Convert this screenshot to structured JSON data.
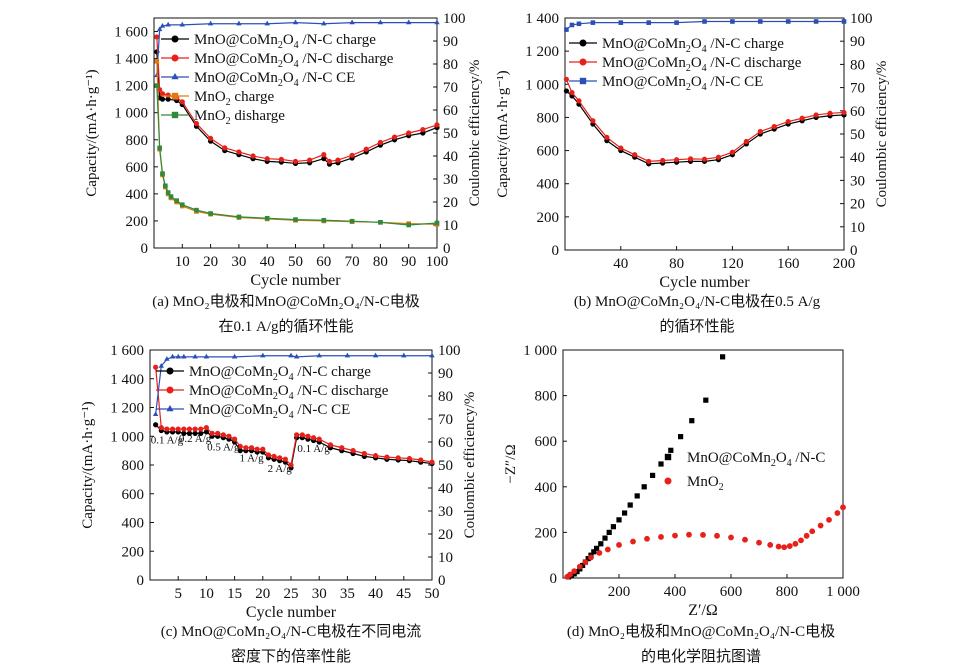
{
  "chart_data": [
    {
      "id": "a",
      "type": "line",
      "caption_lines": [
        "(a) MnO₂电极和MnO@CoMn₂O₄/N-C电极",
        "在0.1 A/g的循环性能"
      ],
      "xlabel": "Cycle number",
      "ylabel": "Capacity/(mA·h·g⁻¹)",
      "y2label": "Coulombic efficiency/%",
      "xlim": [
        0,
        100
      ],
      "ylim": [
        0,
        1700
      ],
      "y2lim": [
        0,
        100
      ],
      "xticks": [
        10,
        20,
        30,
        40,
        50,
        60,
        70,
        80,
        90,
        100
      ],
      "yticks": [
        0,
        200,
        400,
        600,
        800,
        1000,
        1200,
        1400,
        1600
      ],
      "ytick_labels": [
        "0",
        "200",
        "400",
        "600",
        "800",
        "1 000",
        "1 200",
        "1 400",
        "1 600"
      ],
      "y2ticks": [
        0,
        10,
        20,
        30,
        40,
        50,
        60,
        70,
        80,
        90,
        100
      ],
      "legend": "top-left",
      "series": [
        {
          "name": "MnO@CoMn2O4 /N-C charge",
          "label_parts": [
            "MnO@CoMn",
            "2",
            "O",
            "4",
            " /N-C charge"
          ],
          "color": "#000000",
          "marker": "circle",
          "axis": "left",
          "x": [
            1,
            2,
            3,
            5,
            8,
            10,
            15,
            20,
            25,
            30,
            35,
            40,
            45,
            50,
            55,
            60,
            62,
            65,
            70,
            75,
            80,
            85,
            90,
            95,
            100
          ],
          "y": [
            1450,
            1110,
            1100,
            1100,
            1090,
            1060,
            900,
            790,
            720,
            690,
            660,
            640,
            635,
            625,
            630,
            660,
            620,
            630,
            665,
            710,
            760,
            800,
            830,
            850,
            890
          ]
        },
        {
          "name": "MnO@CoMn2O4 /N-C discharge",
          "label_parts": [
            "MnO@CoMn",
            "2",
            "O",
            "4",
            " /N-C discharge"
          ],
          "color": "#e8201a",
          "marker": "circle",
          "axis": "left",
          "x": [
            1,
            2,
            3,
            5,
            8,
            10,
            15,
            20,
            25,
            30,
            35,
            40,
            45,
            50,
            55,
            60,
            62,
            65,
            70,
            75,
            80,
            85,
            90,
            95,
            100
          ],
          "y": [
            1560,
            1170,
            1140,
            1130,
            1110,
            1080,
            920,
            810,
            740,
            710,
            680,
            660,
            655,
            640,
            650,
            690,
            640,
            650,
            685,
            730,
            780,
            820,
            850,
            875,
            910
          ]
        },
        {
          "name": "MnO@CoMn2O4 /N-C CE",
          "label_parts": [
            "MnO@CoMn",
            "2",
            "O",
            "4",
            " /N-C CE"
          ],
          "color": "#2a50b8",
          "marker": "triangle",
          "axis": "right",
          "x": [
            1,
            2,
            3,
            5,
            10,
            20,
            30,
            40,
            50,
            60,
            70,
            80,
            90,
            100
          ],
          "y": [
            75,
            95,
            96.5,
            97,
            97,
            97.5,
            97.5,
            97.5,
            98,
            97.5,
            98,
            98,
            98,
            98
          ]
        },
        {
          "name": "MnO2 charge",
          "label_parts": [
            "MnO",
            "2",
            " charge"
          ],
          "color": "#e07a10",
          "marker": "square",
          "axis": "left",
          "x": [
            1,
            2,
            3,
            4,
            5,
            6,
            8,
            10,
            15,
            20,
            30,
            40,
            50,
            60,
            70,
            80,
            90,
            100
          ],
          "y": [
            1380,
            730,
            540,
            450,
            400,
            370,
            340,
            310,
            270,
            250,
            225,
            215,
            205,
            200,
            195,
            190,
            180,
            175
          ]
        },
        {
          "name": "MnO2 disharge",
          "label_parts": [
            "MnO",
            "2",
            " disharge"
          ],
          "color": "#2f8a3a",
          "marker": "square",
          "axis": "left",
          "x": [
            1,
            2,
            3,
            4,
            5,
            6,
            8,
            10,
            15,
            20,
            30,
            40,
            50,
            60,
            70,
            80,
            90,
            100
          ],
          "y": [
            1200,
            740,
            550,
            460,
            410,
            380,
            350,
            320,
            280,
            255,
            230,
            220,
            210,
            205,
            198,
            190,
            170,
            185
          ]
        }
      ]
    },
    {
      "id": "b",
      "type": "line",
      "caption_lines": [
        "(b) MnO@CoMn₂O₄/N-C电极在0.5 A/g",
        "的循环性能"
      ],
      "xlabel": "Cycle number",
      "ylabel": "Capacity/(mA·h·g⁻¹)",
      "y2label": "Coulombic efficiency/%",
      "xlim": [
        0,
        200
      ],
      "ylim": [
        0,
        1400
      ],
      "y2lim": [
        0,
        100
      ],
      "xticks": [
        40,
        80,
        120,
        160,
        200
      ],
      "yticks": [
        0,
        200,
        400,
        600,
        800,
        1000,
        1200,
        1400
      ],
      "ytick_labels": [
        "0",
        "200",
        "400",
        "600",
        "800",
        "1 000",
        "1 200",
        "1 400"
      ],
      "y2ticks": [
        0,
        10,
        20,
        30,
        40,
        50,
        60,
        70,
        80,
        90,
        100
      ],
      "legend": "top-left",
      "series": [
        {
          "name": "MnO@CoMn2O4 /N-C charge",
          "label_parts": [
            "MnO@CoMn",
            "2",
            "O",
            "4",
            " /N-C charge"
          ],
          "color": "#000000",
          "marker": "circle",
          "axis": "left",
          "x": [
            1,
            5,
            10,
            20,
            30,
            40,
            50,
            60,
            70,
            80,
            90,
            100,
            110,
            120,
            130,
            140,
            150,
            160,
            170,
            180,
            190,
            200
          ],
          "y": [
            960,
            930,
            880,
            760,
            660,
            600,
            560,
            520,
            525,
            530,
            535,
            535,
            545,
            575,
            640,
            700,
            730,
            760,
            780,
            800,
            810,
            815
          ]
        },
        {
          "name": "MnO@CoMn2O4 /N-C discharge",
          "label_parts": [
            "MnO@CoMn",
            "2",
            "O",
            "4",
            " /N-C discharge"
          ],
          "color": "#e8201a",
          "marker": "circle",
          "axis": "left",
          "x": [
            1,
            5,
            10,
            20,
            30,
            40,
            50,
            60,
            70,
            80,
            90,
            100,
            110,
            120,
            130,
            140,
            150,
            160,
            170,
            180,
            190,
            200
          ],
          "y": [
            1030,
            950,
            900,
            780,
            680,
            615,
            575,
            535,
            540,
            545,
            550,
            548,
            560,
            590,
            655,
            715,
            745,
            775,
            795,
            815,
            825,
            830
          ]
        },
        {
          "name": "MnO@CoMn2O4 /N-C CE",
          "label_parts": [
            "MnO@CoMn",
            "2",
            "O",
            "4",
            " /N-C CE"
          ],
          "color": "#2a50b8",
          "marker": "square",
          "axis": "right",
          "x": [
            1,
            5,
            10,
            20,
            40,
            60,
            80,
            100,
            120,
            140,
            160,
            180,
            200
          ],
          "y": [
            95,
            97,
            97.5,
            98,
            98,
            98,
            98,
            98.5,
            98.5,
            98.5,
            98.5,
            98.5,
            98.5
          ]
        }
      ]
    },
    {
      "id": "c",
      "type": "line",
      "caption_lines": [
        "(c) MnO@CoMn₂O₄/N-C电极在不同电流",
        "密度下的倍率性能"
      ],
      "xlabel": "Cycle number",
      "ylabel": "Capacity/(mA·h·g⁻¹)",
      "y2label": "Coulombic efficiency/%",
      "xlim": [
        0,
        50
      ],
      "ylim": [
        0,
        1600
      ],
      "y2lim": [
        0,
        100
      ],
      "xticks": [
        5,
        10,
        15,
        20,
        25,
        30,
        35,
        40,
        45,
        50
      ],
      "yticks": [
        0,
        200,
        400,
        600,
        800,
        1000,
        1200,
        1400,
        1600
      ],
      "ytick_labels": [
        "0",
        "200",
        "400",
        "600",
        "800",
        "1 000",
        "1 200",
        "1 400",
        "1 600"
      ],
      "y2ticks": [
        0,
        10,
        20,
        30,
        40,
        50,
        60,
        70,
        80,
        90,
        100
      ],
      "legend": "top-left",
      "annotations": [
        {
          "text": "0.1 A/g",
          "x": 3,
          "y": 950
        },
        {
          "text": "0.2 A/g",
          "x": 8,
          "y": 960
        },
        {
          "text": "0.5 A/g",
          "x": 13,
          "y": 900
        },
        {
          "text": "1 A/g",
          "x": 18,
          "y": 825
        },
        {
          "text": "2 A/g",
          "x": 23,
          "y": 750
        },
        {
          "text": "0.1 A/g",
          "x": 29,
          "y": 890
        }
      ],
      "series": [
        {
          "name": "MnO@CoMn2O4 /N-C charge",
          "label_parts": [
            "MnO@CoMn",
            "2",
            "O",
            "4",
            " /N-C charge"
          ],
          "color": "#000000",
          "marker": "circle",
          "axis": "left",
          "x": [
            1,
            2,
            3,
            4,
            5,
            6,
            7,
            8,
            9,
            10,
            11,
            12,
            13,
            14,
            15,
            16,
            17,
            18,
            19,
            20,
            21,
            22,
            23,
            24,
            25,
            26,
            27,
            28,
            29,
            30,
            32,
            34,
            36,
            38,
            40,
            42,
            44,
            46,
            48,
            50
          ],
          "y": [
            1080,
            1040,
            1030,
            1030,
            1030,
            1020,
            1020,
            1020,
            1020,
            1030,
            1000,
            1000,
            990,
            980,
            960,
            900,
            900,
            900,
            890,
            890,
            850,
            840,
            830,
            820,
            780,
            990,
            990,
            980,
            970,
            960,
            920,
            900,
            880,
            860,
            850,
            840,
            835,
            830,
            820,
            810
          ]
        },
        {
          "name": "MnO@CoMn2O4 /N-C discharge",
          "label_parts": [
            "MnO@CoMn",
            "2",
            "O",
            "4",
            " /N-C discharge"
          ],
          "color": "#e8201a",
          "marker": "circle",
          "axis": "left",
          "x": [
            1,
            2,
            3,
            4,
            5,
            6,
            7,
            8,
            9,
            10,
            11,
            12,
            13,
            14,
            15,
            16,
            17,
            18,
            19,
            20,
            21,
            22,
            23,
            24,
            25,
            26,
            27,
            28,
            29,
            30,
            32,
            34,
            36,
            38,
            40,
            42,
            44,
            46,
            48,
            50
          ],
          "y": [
            1480,
            1060,
            1050,
            1050,
            1050,
            1050,
            1050,
            1050,
            1050,
            1060,
            1020,
            1020,
            1010,
            1000,
            980,
            930,
            920,
            920,
            910,
            910,
            870,
            860,
            850,
            840,
            800,
            1010,
            1010,
            1000,
            990,
            980,
            940,
            920,
            900,
            880,
            865,
            855,
            850,
            845,
            835,
            820
          ]
        },
        {
          "name": "MnO@CoMn2O4 /N-C CE",
          "label_parts": [
            "MnO@CoMn",
            "2",
            "O",
            "4",
            " /N-C CE"
          ],
          "color": "#2a50b8",
          "marker": "triangle",
          "axis": "right",
          "x": [
            1,
            2,
            3,
            4,
            5,
            6,
            8,
            10,
            15,
            20,
            25,
            26,
            30,
            35,
            40,
            45,
            50
          ],
          "y": [
            72,
            93,
            96,
            97,
            97,
            97,
            97,
            97,
            97,
            97.5,
            97.5,
            97,
            97.5,
            97.5,
            97.5,
            97.5,
            97.5
          ]
        }
      ]
    },
    {
      "id": "d",
      "type": "scatter",
      "caption_lines": [
        "(d) MnO₂电极和MnO@CoMn₂O₄/N-C电极",
        "的电化学阻抗图谱"
      ],
      "xlabel": "Z′/Ω",
      "ylabel": "−Z″/Ω",
      "xlim": [
        0,
        1000
      ],
      "ylim": [
        0,
        1000
      ],
      "xticks": [
        200,
        400,
        600,
        800,
        1000
      ],
      "xtick_labels": [
        "200",
        "400",
        "600",
        "800",
        "1 000"
      ],
      "yticks": [
        0,
        200,
        400,
        600,
        800,
        1000
      ],
      "ytick_labels": [
        "0",
        "200",
        "400",
        "600",
        "800",
        "1 000"
      ],
      "legend": "middle-right",
      "series": [
        {
          "name": "MnO@CoMn2O4 /N-C",
          "label_parts": [
            "MnO@CoMn",
            "2",
            "O",
            "4",
            " /N-C"
          ],
          "color": "#000000",
          "marker": "square",
          "x": [
            20,
            30,
            40,
            50,
            60,
            70,
            80,
            90,
            100,
            110,
            120,
            135,
            150,
            165,
            180,
            200,
            220,
            240,
            265,
            290,
            320,
            350,
            385,
            420,
            460,
            510,
            570
          ],
          "y": [
            5,
            10,
            18,
            28,
            40,
            55,
            70,
            85,
            100,
            115,
            130,
            150,
            175,
            200,
            225,
            255,
            285,
            320,
            360,
            400,
            450,
            500,
            560,
            620,
            690,
            780,
            970
          ]
        },
        {
          "name": "MnO2",
          "label_parts": [
            "MnO",
            "2"
          ],
          "color": "#e8201a",
          "marker": "circle",
          "x": [
            15,
            25,
            40,
            60,
            80,
            100,
            130,
            160,
            200,
            250,
            300,
            350,
            400,
            450,
            500,
            550,
            600,
            650,
            700,
            740,
            770,
            790,
            810,
            830,
            850,
            870,
            890,
            920,
            950,
            980,
            1000
          ],
          "y": [
            5,
            15,
            30,
            50,
            70,
            90,
            110,
            125,
            145,
            160,
            172,
            180,
            186,
            190,
            189,
            185,
            178,
            168,
            155,
            145,
            138,
            135,
            140,
            150,
            165,
            185,
            205,
            230,
            255,
            285,
            310
          ]
        }
      ]
    }
  ]
}
